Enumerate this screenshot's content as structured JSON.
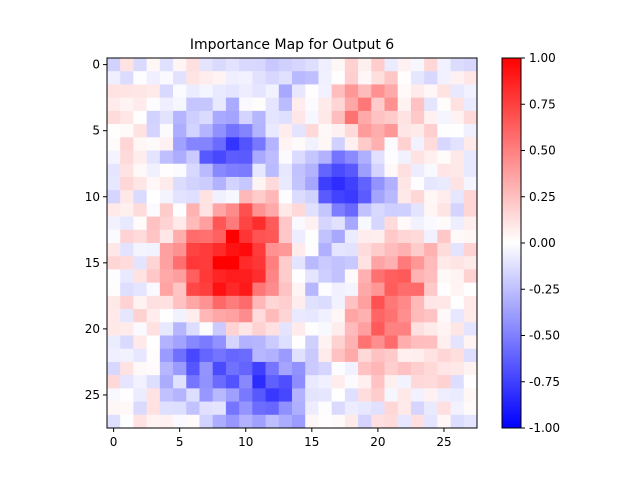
{
  "chart_data": {
    "type": "heatmap",
    "title": "Importance Map for Output 6",
    "rows": 28,
    "cols": 28,
    "x_ticks": [
      "0",
      "5",
      "10",
      "15",
      "20",
      "25"
    ],
    "y_ticks": [
      "0",
      "5",
      "10",
      "15",
      "20",
      "25"
    ],
    "colorbar": {
      "min": -1.0,
      "max": 1.0,
      "ticks": [
        "-1.00",
        "-0.75",
        "-0.50",
        "-0.25",
        "0.00",
        "0.25",
        "0.50",
        "0.75",
        "1.00"
      ],
      "colormap": "bwr",
      "color_low": "#0000ff",
      "color_mid": "#ffffff",
      "color_high": "#ff0000"
    },
    "blobs": [
      {
        "row": 15.5,
        "col": 8.5,
        "sigma": 2.8,
        "amp": 1.0
      },
      {
        "row": 11.5,
        "col": 11.0,
        "sigma": 2.0,
        "amp": 0.45
      },
      {
        "row": 4.5,
        "col": 18.5,
        "sigma": 2.5,
        "amp": 0.55
      },
      {
        "row": 16.5,
        "col": 21.5,
        "sigma": 2.3,
        "amp": 0.55
      },
      {
        "row": 20.5,
        "col": 20.0,
        "sigma": 2.0,
        "amp": 0.4
      },
      {
        "row": 8.5,
        "col": 17.5,
        "sigma": 2.2,
        "amp": -0.9
      },
      {
        "row": 6.5,
        "col": 8.5,
        "sigma": 2.3,
        "amp": -0.7
      },
      {
        "row": 24.5,
        "col": 11.5,
        "sigma": 2.4,
        "amp": -0.7
      },
      {
        "row": 22.0,
        "col": 6.5,
        "sigma": 2.0,
        "amp": -0.6
      },
      {
        "row": 15.5,
        "col": 16.0,
        "sigma": 2.0,
        "amp": -0.3
      },
      {
        "row": 1.0,
        "col": 14.5,
        "sigma": 1.8,
        "amp": -0.3
      }
    ]
  }
}
